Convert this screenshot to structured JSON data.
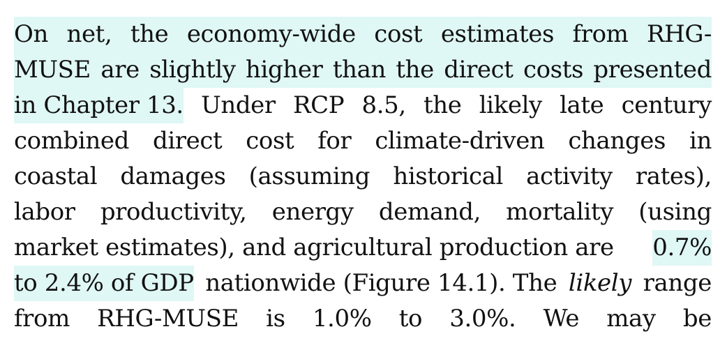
{
  "paragraph": {
    "line1_words": [
      "On",
      "net,",
      "the",
      "economy-wide",
      "cost",
      "estimates",
      "from",
      "RHG-"
    ],
    "line2_words": [
      "MUSE",
      "are",
      "slightly",
      "higher",
      "than",
      "the",
      "direct",
      "costs",
      "presented"
    ],
    "line3_hl": "in Chapter 13.",
    "line3_rest": [
      "Under",
      "RCP",
      "8.5,",
      "the",
      "likely",
      "late",
      "century"
    ],
    "line4_words": [
      "combined",
      "direct",
      "cost",
      "for",
      "climate-driven",
      "changes",
      "in"
    ],
    "line5_words": [
      "coastal",
      "damages",
      "(assuming",
      "historical",
      "activity",
      "rates),"
    ],
    "line6_words": [
      "labor",
      "productivity,",
      "energy",
      "demand,",
      "mortality",
      "(using"
    ],
    "line7_text": "market estimates), and agricultural production are",
    "line7_hl": "0.7%",
    "line8_hl": "to 2.4% of GDP",
    "line8_pre": "nationwide (Figure 14.1). The",
    "line8_em": "likely",
    "line8_post": "range",
    "line9_words": [
      "from",
      "RHG-MUSE",
      "is",
      "1.0%",
      "to",
      "3.0%.",
      "We",
      "may",
      "be"
    ]
  },
  "colors": {
    "highlight": "#dff7f5",
    "text": "#111111"
  }
}
